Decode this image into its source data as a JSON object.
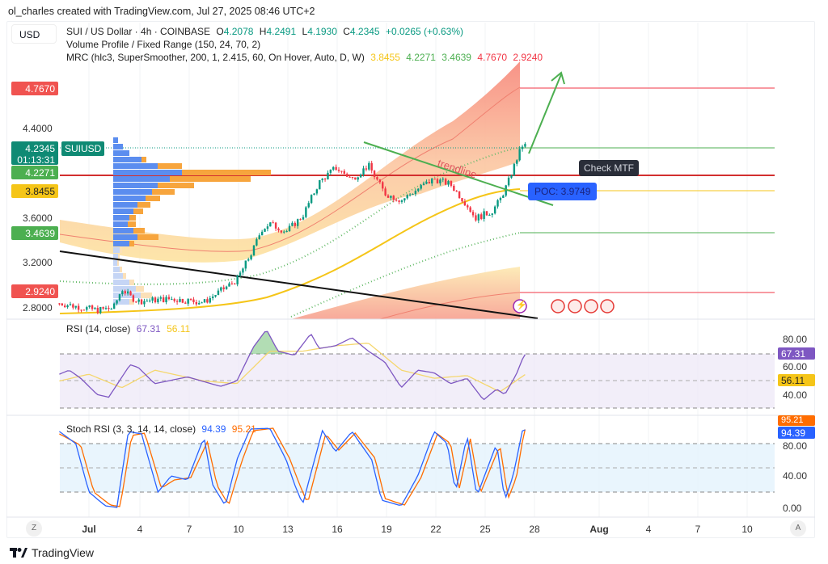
{
  "credit": "ol_charles created with TradingView.com, Jul 27, 2025 08:46 UTC+2",
  "currency_button": "USD",
  "legend": {
    "symbol": "SUI / US Dollar · 4h · COINBASE",
    "o_label": "O",
    "o": "4.2078",
    "h_label": "H",
    "h": "4.2491",
    "l_label": "L",
    "l": "4.1930",
    "c_label": "C",
    "c": "4.2345",
    "change": "+0.0265 (+0.63%)",
    "volume_profile": "Volume Profile / Fixed Range (150, 24, 70, 2)",
    "mrc": "MRC (hlc3, SuperSmoother, 200, 1, 2.415, 60, On Hover, Auto, D, W)",
    "mrc_values": [
      "3.8455",
      "4.2271",
      "3.4639",
      "4.7670",
      "2.9240"
    ]
  },
  "price_axis": {
    "ticks": [
      "4.4000",
      "3.6000",
      "3.2000",
      "2.8000"
    ],
    "labels": {
      "r2": "4.7670",
      "last": "4.2345",
      "countdown": "01:13:31",
      "r1": "4.2271",
      "mean": "3.8455",
      "s1": "3.4639",
      "s2": "2.9240"
    },
    "symbol_tag": "SUIUSD"
  },
  "annotations": {
    "trendline": "trendline",
    "poc": "POC: 3.9749",
    "check": "Check MTF"
  },
  "rsi": {
    "title": "RSI (14, close)",
    "value": "67.31",
    "ma": "56.11",
    "ticks": [
      "80.00",
      "60.00",
      "40.00"
    ]
  },
  "stoch": {
    "title": "Stoch RSI (3, 3, 14, 14, close)",
    "k": "94.39",
    "d": "95.21",
    "ticks": [
      "80.00",
      "40.00",
      "0.00"
    ]
  },
  "time_axis": {
    "ticks": [
      "Jul",
      "4",
      "7",
      "10",
      "13",
      "16",
      "19",
      "22",
      "25",
      "28",
      "Aug",
      "4",
      "7",
      "10"
    ],
    "z": "Z",
    "a": "A"
  },
  "brand": "TradingView",
  "colors": {
    "up": "#089981",
    "down": "#f23645",
    "mrc_mean": "#f5c518",
    "rsi": "#7e57c2",
    "stoch_k": "#2962ff",
    "stoch_d": "#ff6d00"
  },
  "chart_data": {
    "type": "candlestick",
    "price_path": [
      [
        -1.8,
        2.84
      ],
      [
        0.5,
        2.78
      ],
      [
        1.5,
        2.8
      ],
      [
        2,
        2.97
      ],
      [
        2.5,
        2.9
      ],
      [
        3,
        2.86
      ],
      [
        5,
        2.88
      ],
      [
        7,
        2.85
      ],
      [
        8,
        2.95
      ],
      [
        9,
        3.05
      ],
      [
        10,
        3.32
      ],
      [
        10.5,
        3.5
      ],
      [
        11,
        3.55
      ],
      [
        12,
        3.48
      ],
      [
        13,
        3.62
      ],
      [
        14,
        3.92
      ],
      [
        15,
        4.05
      ],
      [
        16,
        3.95
      ],
      [
        17,
        4.07
      ],
      [
        18,
        3.82
      ],
      [
        19,
        3.76
      ],
      [
        20,
        3.86
      ],
      [
        21,
        3.95
      ],
      [
        22,
        3.9
      ],
      [
        23,
        3.72
      ],
      [
        23.5,
        3.6
      ],
      [
        24.5,
        3.66
      ],
      [
        25,
        3.76
      ],
      [
        25.5,
        3.92
      ],
      [
        26,
        4.12
      ],
      [
        26.4,
        4.26
      ],
      [
        26.7,
        4.23
      ]
    ],
    "rsi_path": [
      [
        -1.8,
        55
      ],
      [
        -1.2,
        58
      ],
      [
        -0.5,
        52
      ],
      [
        0.5,
        40
      ],
      [
        1.2,
        38
      ],
      [
        2.5,
        62
      ],
      [
        3,
        60
      ],
      [
        4,
        48
      ],
      [
        6,
        53
      ],
      [
        8,
        46
      ],
      [
        9,
        50
      ],
      [
        10,
        75
      ],
      [
        10.8,
        88
      ],
      [
        11.5,
        72
      ],
      [
        12.5,
        69
      ],
      [
        13.5,
        85
      ],
      [
        14,
        74
      ],
      [
        15,
        76
      ],
      [
        16,
        82
      ],
      [
        17,
        72
      ],
      [
        18,
        64
      ],
      [
        19,
        45
      ],
      [
        20,
        58
      ],
      [
        21,
        56
      ],
      [
        22,
        48
      ],
      [
        23,
        52
      ],
      [
        24,
        36
      ],
      [
        24.8,
        44
      ],
      [
        25.3,
        40
      ],
      [
        26,
        55
      ],
      [
        26.5,
        70
      ],
      [
        26.7,
        67.3
      ]
    ],
    "rsi_ma_path": [
      [
        -1.8,
        50
      ],
      [
        0,
        55
      ],
      [
        2,
        45
      ],
      [
        4,
        58
      ],
      [
        7,
        50
      ],
      [
        9,
        48
      ],
      [
        11,
        72
      ],
      [
        13,
        72
      ],
      [
        15,
        76
      ],
      [
        17,
        78
      ],
      [
        19,
        58
      ],
      [
        21,
        52
      ],
      [
        23,
        54
      ],
      [
        25,
        42
      ],
      [
        26.7,
        56.1
      ]
    ],
    "stoch_k_path": [
      [
        -1.8,
        95
      ],
      [
        -0.8,
        80
      ],
      [
        0,
        20
      ],
      [
        1,
        3
      ],
      [
        1.7,
        1
      ],
      [
        2.4,
        95
      ],
      [
        3.2,
        92
      ],
      [
        4.2,
        20
      ],
      [
        5,
        40
      ],
      [
        6,
        35
      ],
      [
        7,
        88
      ],
      [
        7.5,
        30
      ],
      [
        8.3,
        3
      ],
      [
        9,
        60
      ],
      [
        9.8,
        98
      ],
      [
        11,
        99
      ],
      [
        12,
        60
      ],
      [
        12.5,
        30
      ],
      [
        13,
        5
      ],
      [
        14.2,
        96
      ],
      [
        15,
        70
      ],
      [
        16,
        95
      ],
      [
        17.2,
        60
      ],
      [
        17.8,
        10
      ],
      [
        19,
        3
      ],
      [
        20,
        40
      ],
      [
        21,
        95
      ],
      [
        21.8,
        80
      ],
      [
        22.3,
        20
      ],
      [
        23,
        90
      ],
      [
        23.6,
        15
      ],
      [
        24.8,
        80
      ],
      [
        25.3,
        10
      ],
      [
        25.8,
        40
      ],
      [
        26.4,
        99
      ],
      [
        26.7,
        94.4
      ]
    ],
    "stoch_d_path": [
      [
        -1.8,
        92
      ],
      [
        -0.5,
        78
      ],
      [
        0.3,
        20
      ],
      [
        1.3,
        4
      ],
      [
        1.9,
        2
      ],
      [
        2.6,
        90
      ],
      [
        3.4,
        93
      ],
      [
        4.4,
        25
      ],
      [
        5.2,
        35
      ],
      [
        6.2,
        38
      ],
      [
        7.2,
        82
      ],
      [
        7.8,
        28
      ],
      [
        8.5,
        4
      ],
      [
        9.3,
        58
      ],
      [
        10,
        96
      ],
      [
        11.2,
        99
      ],
      [
        12.2,
        62
      ],
      [
        12.8,
        30
      ],
      [
        13.3,
        6
      ],
      [
        14.4,
        92
      ],
      [
        15.2,
        72
      ],
      [
        16.2,
        93
      ],
      [
        17.4,
        62
      ],
      [
        18,
        12
      ],
      [
        19.2,
        4
      ],
      [
        20.2,
        38
      ],
      [
        21.2,
        92
      ],
      [
        22,
        80
      ],
      [
        22.5,
        22
      ],
      [
        23.2,
        86
      ],
      [
        23.8,
        18
      ],
      [
        25,
        78
      ],
      [
        25.5,
        12
      ],
      [
        26,
        38
      ],
      [
        26.5,
        98
      ],
      [
        26.7,
        95.2
      ]
    ],
    "ylim_price": [
      2.75,
      4.9
    ],
    "rsi_bands": [
      70,
      30
    ],
    "stoch_bands": [
      80,
      20
    ]
  }
}
